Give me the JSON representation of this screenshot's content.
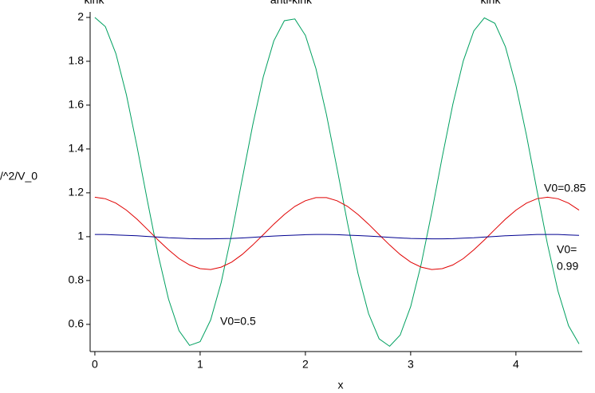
{
  "chart_data": {
    "type": "line",
    "xlabel": "x",
    "ylabel": "/^2/V_0",
    "annotations": [
      "kink",
      "anti-kink",
      "kink",
      "V0=0.85",
      "V0=",
      "0.99",
      "V0=0.5"
    ],
    "x": [
      0,
      0.1,
      0.2,
      0.3,
      0.4,
      0.5,
      0.6,
      0.7,
      0.8,
      0.9,
      1,
      1.1,
      1.2,
      1.3,
      1.4,
      1.5,
      1.6,
      1.7,
      1.8,
      1.9,
      2,
      2.1,
      2.2,
      2.3,
      2.4,
      2.5,
      2.6,
      2.7,
      2.8,
      2.9,
      3,
      3.1,
      3.2,
      3.3,
      3.4,
      3.5,
      3.6,
      3.7,
      3.8,
      3.9,
      4,
      4.1,
      4.2,
      4.3,
      4.4,
      4.5,
      4.6
    ],
    "series": [
      {
        "color": "#00a060",
        "values": [
          2.0,
          1.958,
          1.835,
          1.647,
          1.413,
          1.162,
          0.92,
          0.715,
          0.571,
          0.504,
          0.521,
          0.62,
          0.791,
          1.013,
          1.263,
          1.51,
          1.729,
          1.893,
          1.985,
          1.993,
          1.918,
          1.767,
          1.557,
          1.313,
          1.062,
          0.832,
          0.649,
          0.534,
          0.5,
          0.551,
          0.681,
          0.875,
          1.111,
          1.364,
          1.603,
          1.802,
          1.939,
          1.998,
          1.973,
          1.866,
          1.689,
          1.462,
          1.212,
          0.966,
          0.752,
          0.594,
          0.511
        ]
      },
      {
        "color": "#e00000",
        "values": [
          1.18,
          1.173,
          1.153,
          1.121,
          1.08,
          1.033,
          0.985,
          0.94,
          0.9,
          0.871,
          0.854,
          0.85,
          0.861,
          0.884,
          0.919,
          0.962,
          1.009,
          1.057,
          1.101,
          1.138,
          1.164,
          1.178,
          1.178,
          1.164,
          1.138,
          1.101,
          1.057,
          1.009,
          0.962,
          0.919,
          0.884,
          0.861,
          0.85,
          0.854,
          0.871,
          0.9,
          0.94,
          0.985,
          1.033,
          1.08,
          1.121,
          1.153,
          1.173,
          1.18,
          1.173,
          1.153,
          1.121
        ]
      },
      {
        "color": "#000090",
        "values": [
          1.01,
          1.01,
          1.008,
          1.006,
          1.004,
          1.001,
          0.998,
          0.995,
          0.993,
          0.991,
          0.99,
          0.99,
          0.991,
          0.992,
          0.994,
          0.997,
          1.0,
          1.003,
          1.005,
          1.007,
          1.009,
          1.01,
          1.01,
          1.009,
          1.007,
          1.005,
          1.003,
          1.0,
          0.997,
          0.994,
          0.992,
          0.991,
          0.99,
          0.99,
          0.991,
          0.993,
          0.995,
          0.998,
          1.001,
          1.004,
          1.006,
          1.008,
          1.01,
          1.01,
          1.01,
          1.008,
          1.006
        ]
      }
    ],
    "xlim": [
      -0.045,
      4.63
    ],
    "ylim": [
      0.476,
      2.025
    ],
    "xticks": [
      0,
      1,
      2,
      3,
      4
    ],
    "yticks": [
      0.6,
      0.8,
      1,
      1.2,
      1.4,
      1.6,
      1.8,
      2
    ]
  }
}
